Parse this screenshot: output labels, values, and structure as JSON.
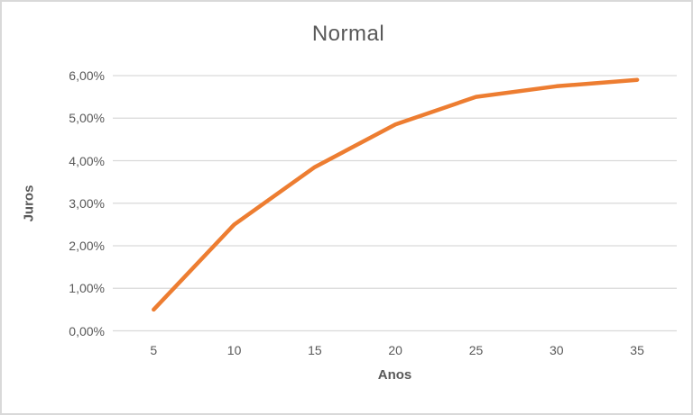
{
  "chart": {
    "title": "Normal",
    "x_axis_title": "Anos",
    "y_axis_title": "Juros"
  },
  "chart_data": {
    "type": "line",
    "title": "Normal",
    "xlabel": "Anos",
    "ylabel": "Juros",
    "categories": [
      5,
      10,
      15,
      20,
      25,
      30,
      35
    ],
    "x_tick_labels": [
      "5",
      "10",
      "15",
      "20",
      "25",
      "30",
      "35"
    ],
    "series": [
      {
        "name": "Juros",
        "values": [
          0.5,
          2.5,
          3.85,
          4.85,
          5.5,
          5.75,
          5.9
        ],
        "unit": "%",
        "color": "#ED7D31"
      }
    ],
    "ylim": [
      0,
      6
    ],
    "y_tick_step": 1,
    "y_tick_labels": [
      "0,00%",
      "1,00%",
      "2,00%",
      "3,00%",
      "4,00%",
      "5,00%",
      "6,00%"
    ],
    "grid": true,
    "legend_position": "none",
    "colors": {
      "line": "#ED7D31",
      "gridline": "#D9D9D9",
      "frame_border": "#D9D9D9",
      "text": "#595959",
      "background": "#FFFFFF"
    }
  }
}
